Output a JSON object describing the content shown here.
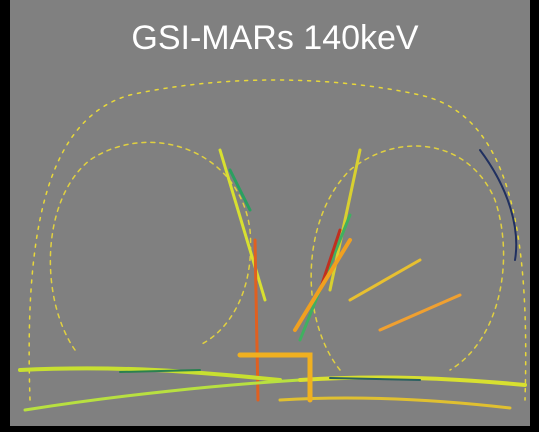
{
  "title": "GSI-MARs 140keV"
}
